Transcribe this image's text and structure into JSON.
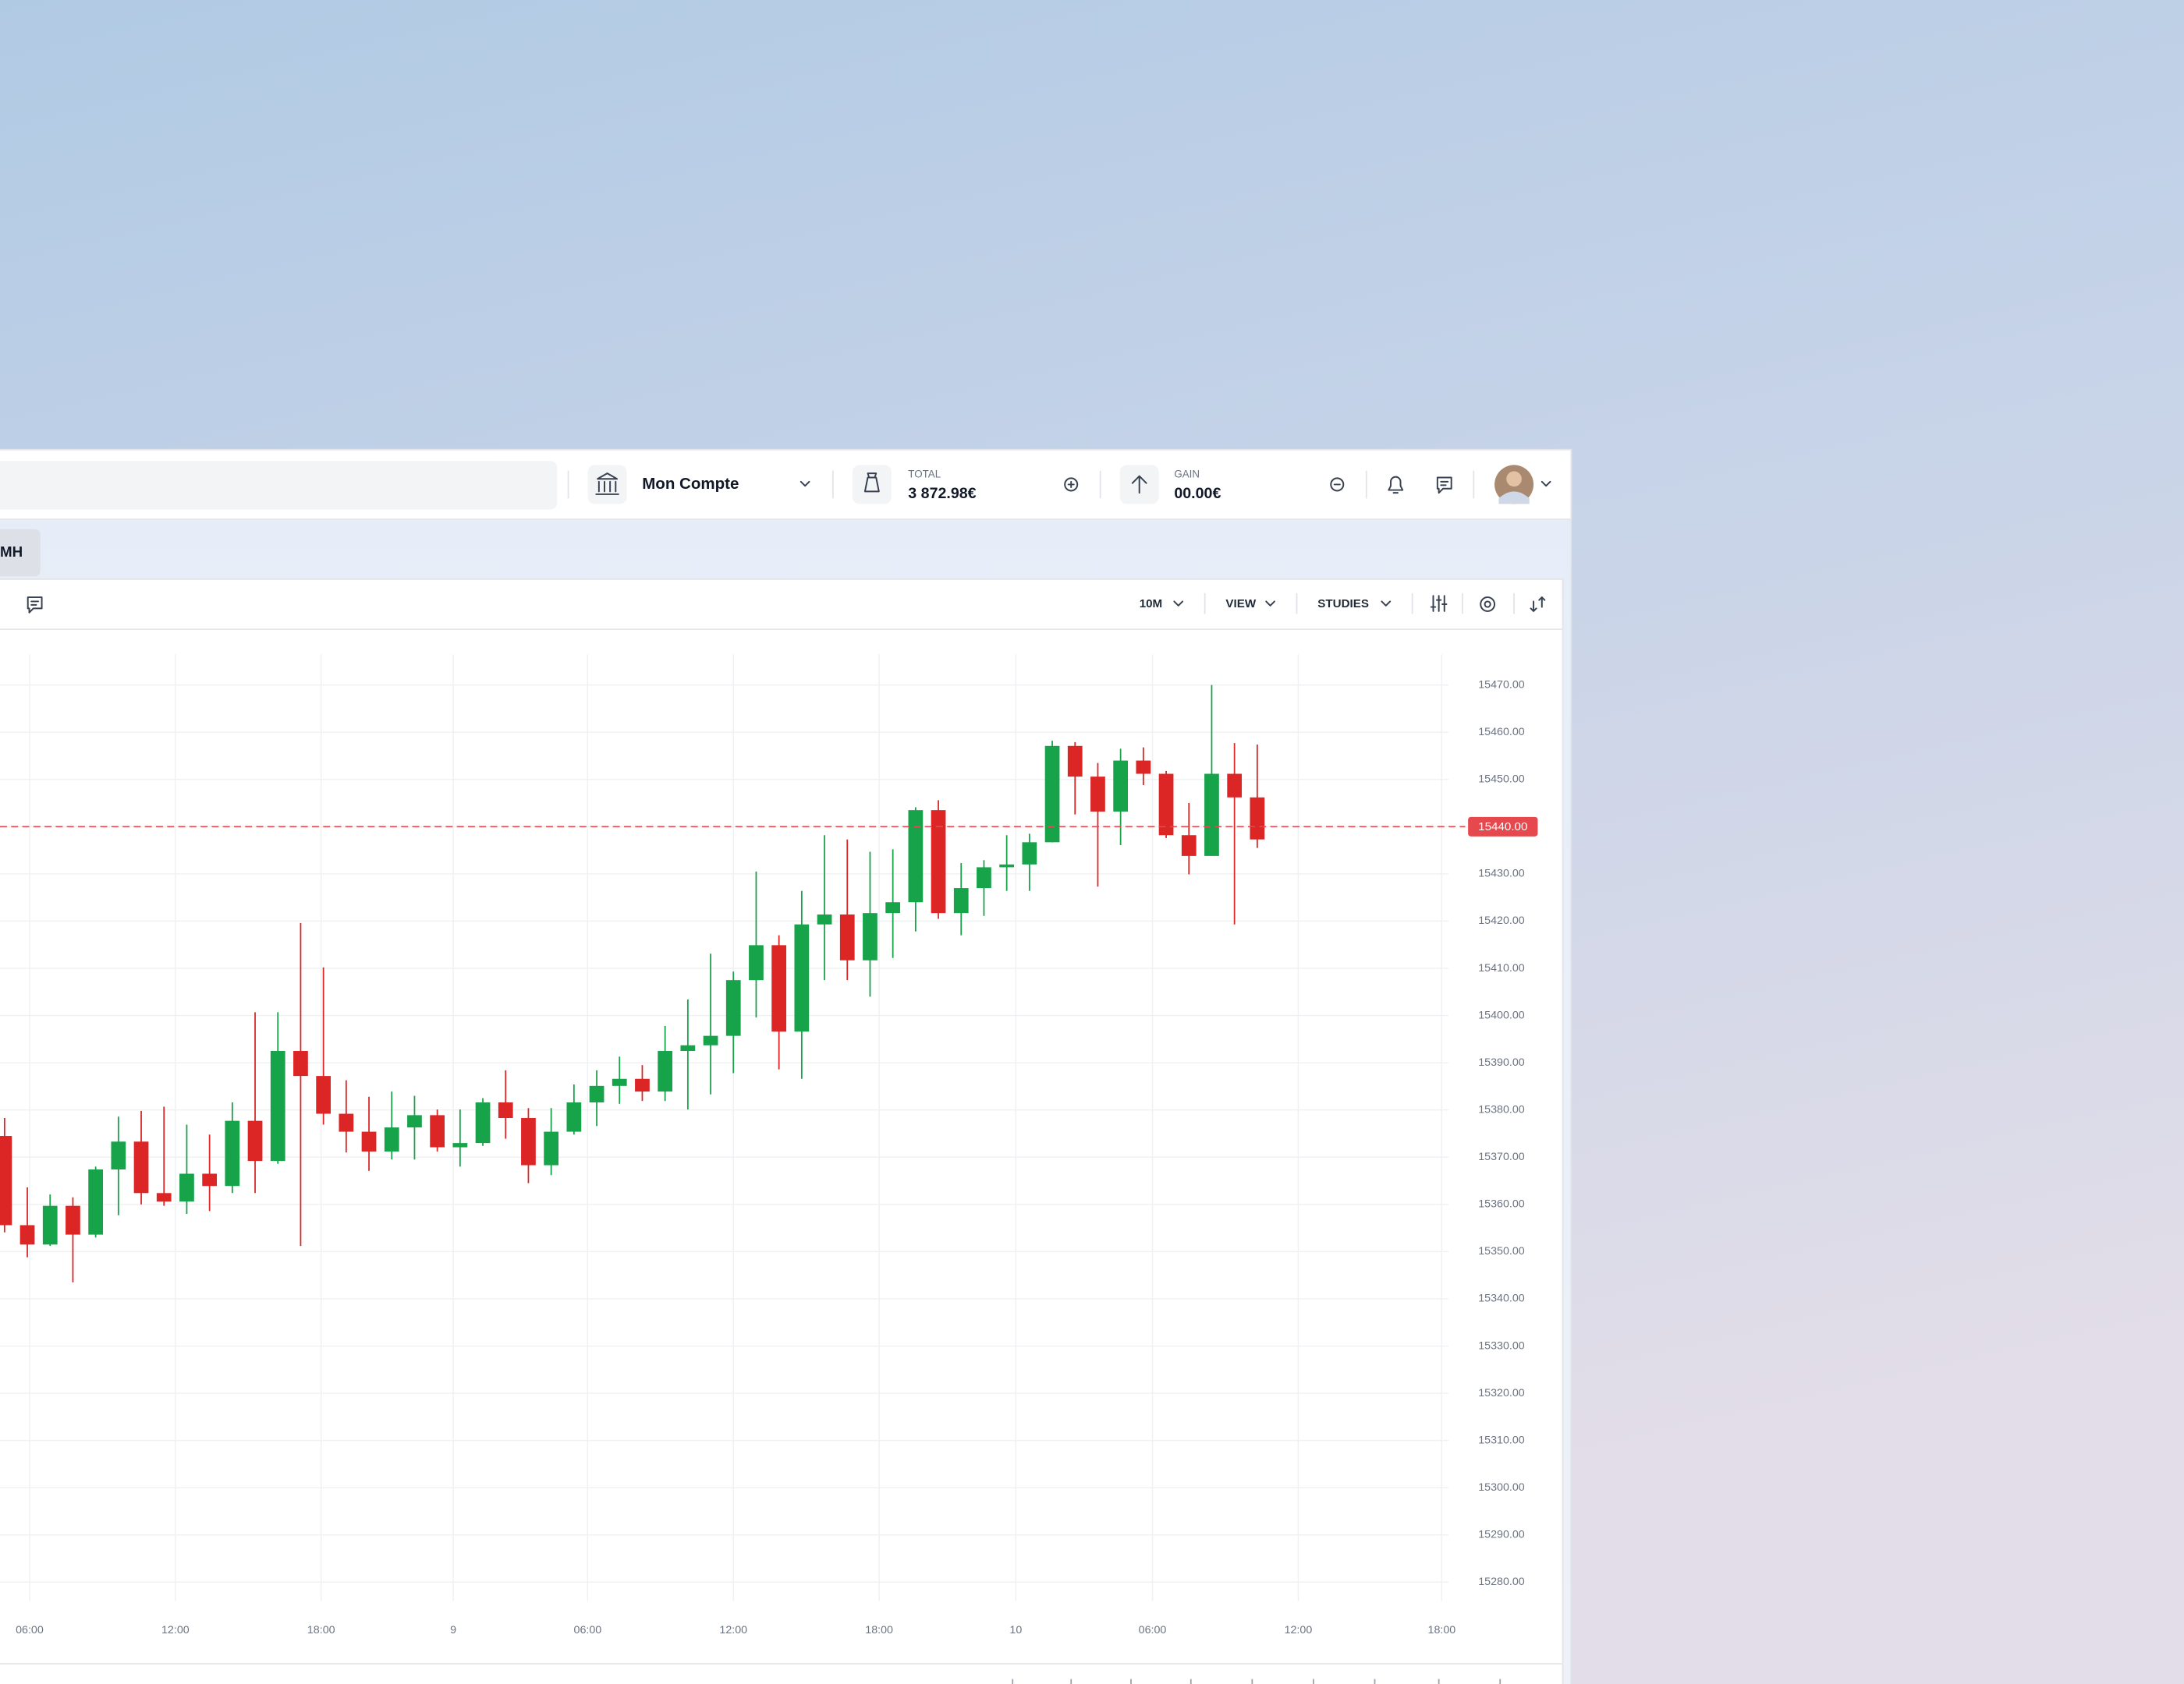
{
  "ui": {
    "account": "Mon Compte",
    "total_label": "TOTAL",
    "total_value": "3 872.98€",
    "gain_label": "GAIN",
    "gain_value": "00.00€",
    "tab": "MH",
    "timeframe": "10M",
    "view": "VIEW",
    "studies": "STUDIES"
  },
  "chart_data": {
    "type": "candlestick",
    "open": [
      15374.5,
      15355.6,
      15351.5,
      15359.7,
      15353.6,
      15367.4,
      15373.3,
      15362.4,
      15360.6,
      15366.5,
      15363.9,
      15377.7,
      15369.2,
      15392.5,
      15387.2,
      15379.2,
      15375.4,
      15371.2,
      15376.3,
      15378.9,
      15372.1,
      15373.0,
      15381.6,
      15378.3,
      15368.3,
      15375.4,
      15381.6,
      15385.1,
      15386.6,
      15383.9,
      15392.5,
      15393.7,
      15395.7,
      15407.5,
      15414.9,
      15396.6,
      15419.3,
      15421.4,
      15411.7,
      15421.7,
      15424.0,
      15443.5,
      15421.7,
      15427.0,
      15431.4,
      15432.0,
      15436.7,
      15457.1,
      15450.6,
      15443.2,
      15454.0,
      15451.2,
      15438.2,
      15433.8,
      15451.2,
      15446.2
    ],
    "high": [
      15378.3,
      15363.6,
      15362.1,
      15361.5,
      15368.0,
      15378.6,
      15379.8,
      15380.7,
      15376.9,
      15374.8,
      15381.6,
      15400.7,
      15400.7,
      15419.6,
      15410.2,
      15386.3,
      15382.8,
      15383.9,
      15383.0,
      15380.1,
      15380.1,
      15382.5,
      15388.4,
      15380.4,
      15380.4,
      15385.4,
      15388.4,
      15391.3,
      15389.5,
      15397.8,
      15403.4,
      15413.1,
      15409.3,
      15430.5,
      15417.0,
      15426.4,
      15438.2,
      15437.3,
      15434.7,
      15435.2,
      15444.1,
      15445.6,
      15432.3,
      15432.9,
      15438.2,
      15438.5,
      15458.2,
      15457.9,
      15453.5,
      15456.5,
      15456.8,
      15451.8,
      15445.0,
      15470.0,
      15457.7,
      15457.4
    ],
    "low": [
      15354.1,
      15348.8,
      15351.2,
      15343.5,
      15353.0,
      15357.7,
      15360.0,
      15359.7,
      15358.0,
      15358.6,
      15362.4,
      15362.4,
      15368.6,
      15351.2,
      15376.9,
      15371.0,
      15367.1,
      15369.5,
      15369.5,
      15371.2,
      15368.0,
      15372.4,
      15373.9,
      15364.5,
      15366.2,
      15374.8,
      15376.6,
      15381.3,
      15381.9,
      15381.9,
      15380.1,
      15383.3,
      15387.8,
      15399.6,
      15388.6,
      15386.6,
      15407.5,
      15407.5,
      15404.0,
      15412.2,
      15417.8,
      15420.5,
      15417.0,
      15421.1,
      15426.4,
      15426.4,
      15436.7,
      15442.6,
      15427.3,
      15436.1,
      15448.8,
      15437.6,
      15429.9,
      15433.8,
      15419.3,
      15435.5
    ],
    "close": [
      15355.6,
      15351.5,
      15359.7,
      15353.6,
      15367.4,
      15373.3,
      15362.4,
      15360.6,
      15366.5,
      15363.9,
      15377.7,
      15369.2,
      15392.5,
      15387.2,
      15379.2,
      15375.4,
      15371.2,
      15376.3,
      15378.9,
      15372.1,
      15373.0,
      15381.6,
      15378.3,
      15368.3,
      15375.4,
      15381.6,
      15385.1,
      15386.6,
      15383.9,
      15392.5,
      15393.7,
      15395.7,
      15407.5,
      15414.9,
      15396.6,
      15419.3,
      15421.4,
      15411.7,
      15421.7,
      15424.0,
      15443.5,
      15421.7,
      15427.0,
      15431.4,
      15432.0,
      15436.7,
      15457.1,
      15450.6,
      15443.2,
      15454.0,
      15451.2,
      15438.2,
      15433.8,
      15451.2,
      15446.2,
      15437.3
    ],
    "up_color": "#17a34a",
    "down_color": "#dc2626",
    "xlim": [
      -0.2,
      63.4
    ],
    "xticks": [
      {
        "value": 1.1,
        "label": "06:00"
      },
      {
        "value": 7.5,
        "label": "12:00"
      },
      {
        "value": 13.9,
        "label": "18:00"
      },
      {
        "value": 19.7,
        "label": "9"
      },
      {
        "value": 25.6,
        "label": "06:00"
      },
      {
        "value": 32,
        "label": "12:00"
      },
      {
        "value": 38.4,
        "label": "18:00"
      },
      {
        "value": 44.4,
        "label": "10"
      },
      {
        "value": 50.4,
        "label": "06:00"
      },
      {
        "value": 56.8,
        "label": "12:00"
      },
      {
        "value": 63.1,
        "label": "18:00"
      }
    ],
    "ylim": [
      15276,
      15476.5
    ],
    "yticks": [
      {
        "value": 15280,
        "label": "15280.00"
      },
      {
        "value": 15290,
        "label": "15290.00"
      },
      {
        "value": 15300,
        "label": "15300.00"
      },
      {
        "value": 15310,
        "label": "15310.00"
      },
      {
        "value": 15320,
        "label": "15320.00"
      },
      {
        "value": 15330,
        "label": "15330.00"
      },
      {
        "value": 15340,
        "label": "15340.00"
      },
      {
        "value": 15350,
        "label": "15350.00"
      },
      {
        "value": 15360,
        "label": "15360.00"
      },
      {
        "value": 15370,
        "label": "15370.00"
      },
      {
        "value": 15380,
        "label": "15380.00"
      },
      {
        "value": 15390,
        "label": "15390.00"
      },
      {
        "value": 15400,
        "label": "15400.00"
      },
      {
        "value": 15410,
        "label": "15410.00"
      },
      {
        "value": 15420,
        "label": "15420.00"
      },
      {
        "value": 15430,
        "label": "15430.00"
      },
      {
        "value": 15440,
        "label": "15440.00"
      },
      {
        "value": 15450,
        "label": "15450.00"
      },
      {
        "value": 15460,
        "label": "15460.00"
      },
      {
        "value": 15470,
        "label": "15470.00"
      }
    ],
    "grid": true,
    "price_line": {
      "value": 15440,
      "label": "15440.00",
      "color": "#e5484d"
    }
  }
}
